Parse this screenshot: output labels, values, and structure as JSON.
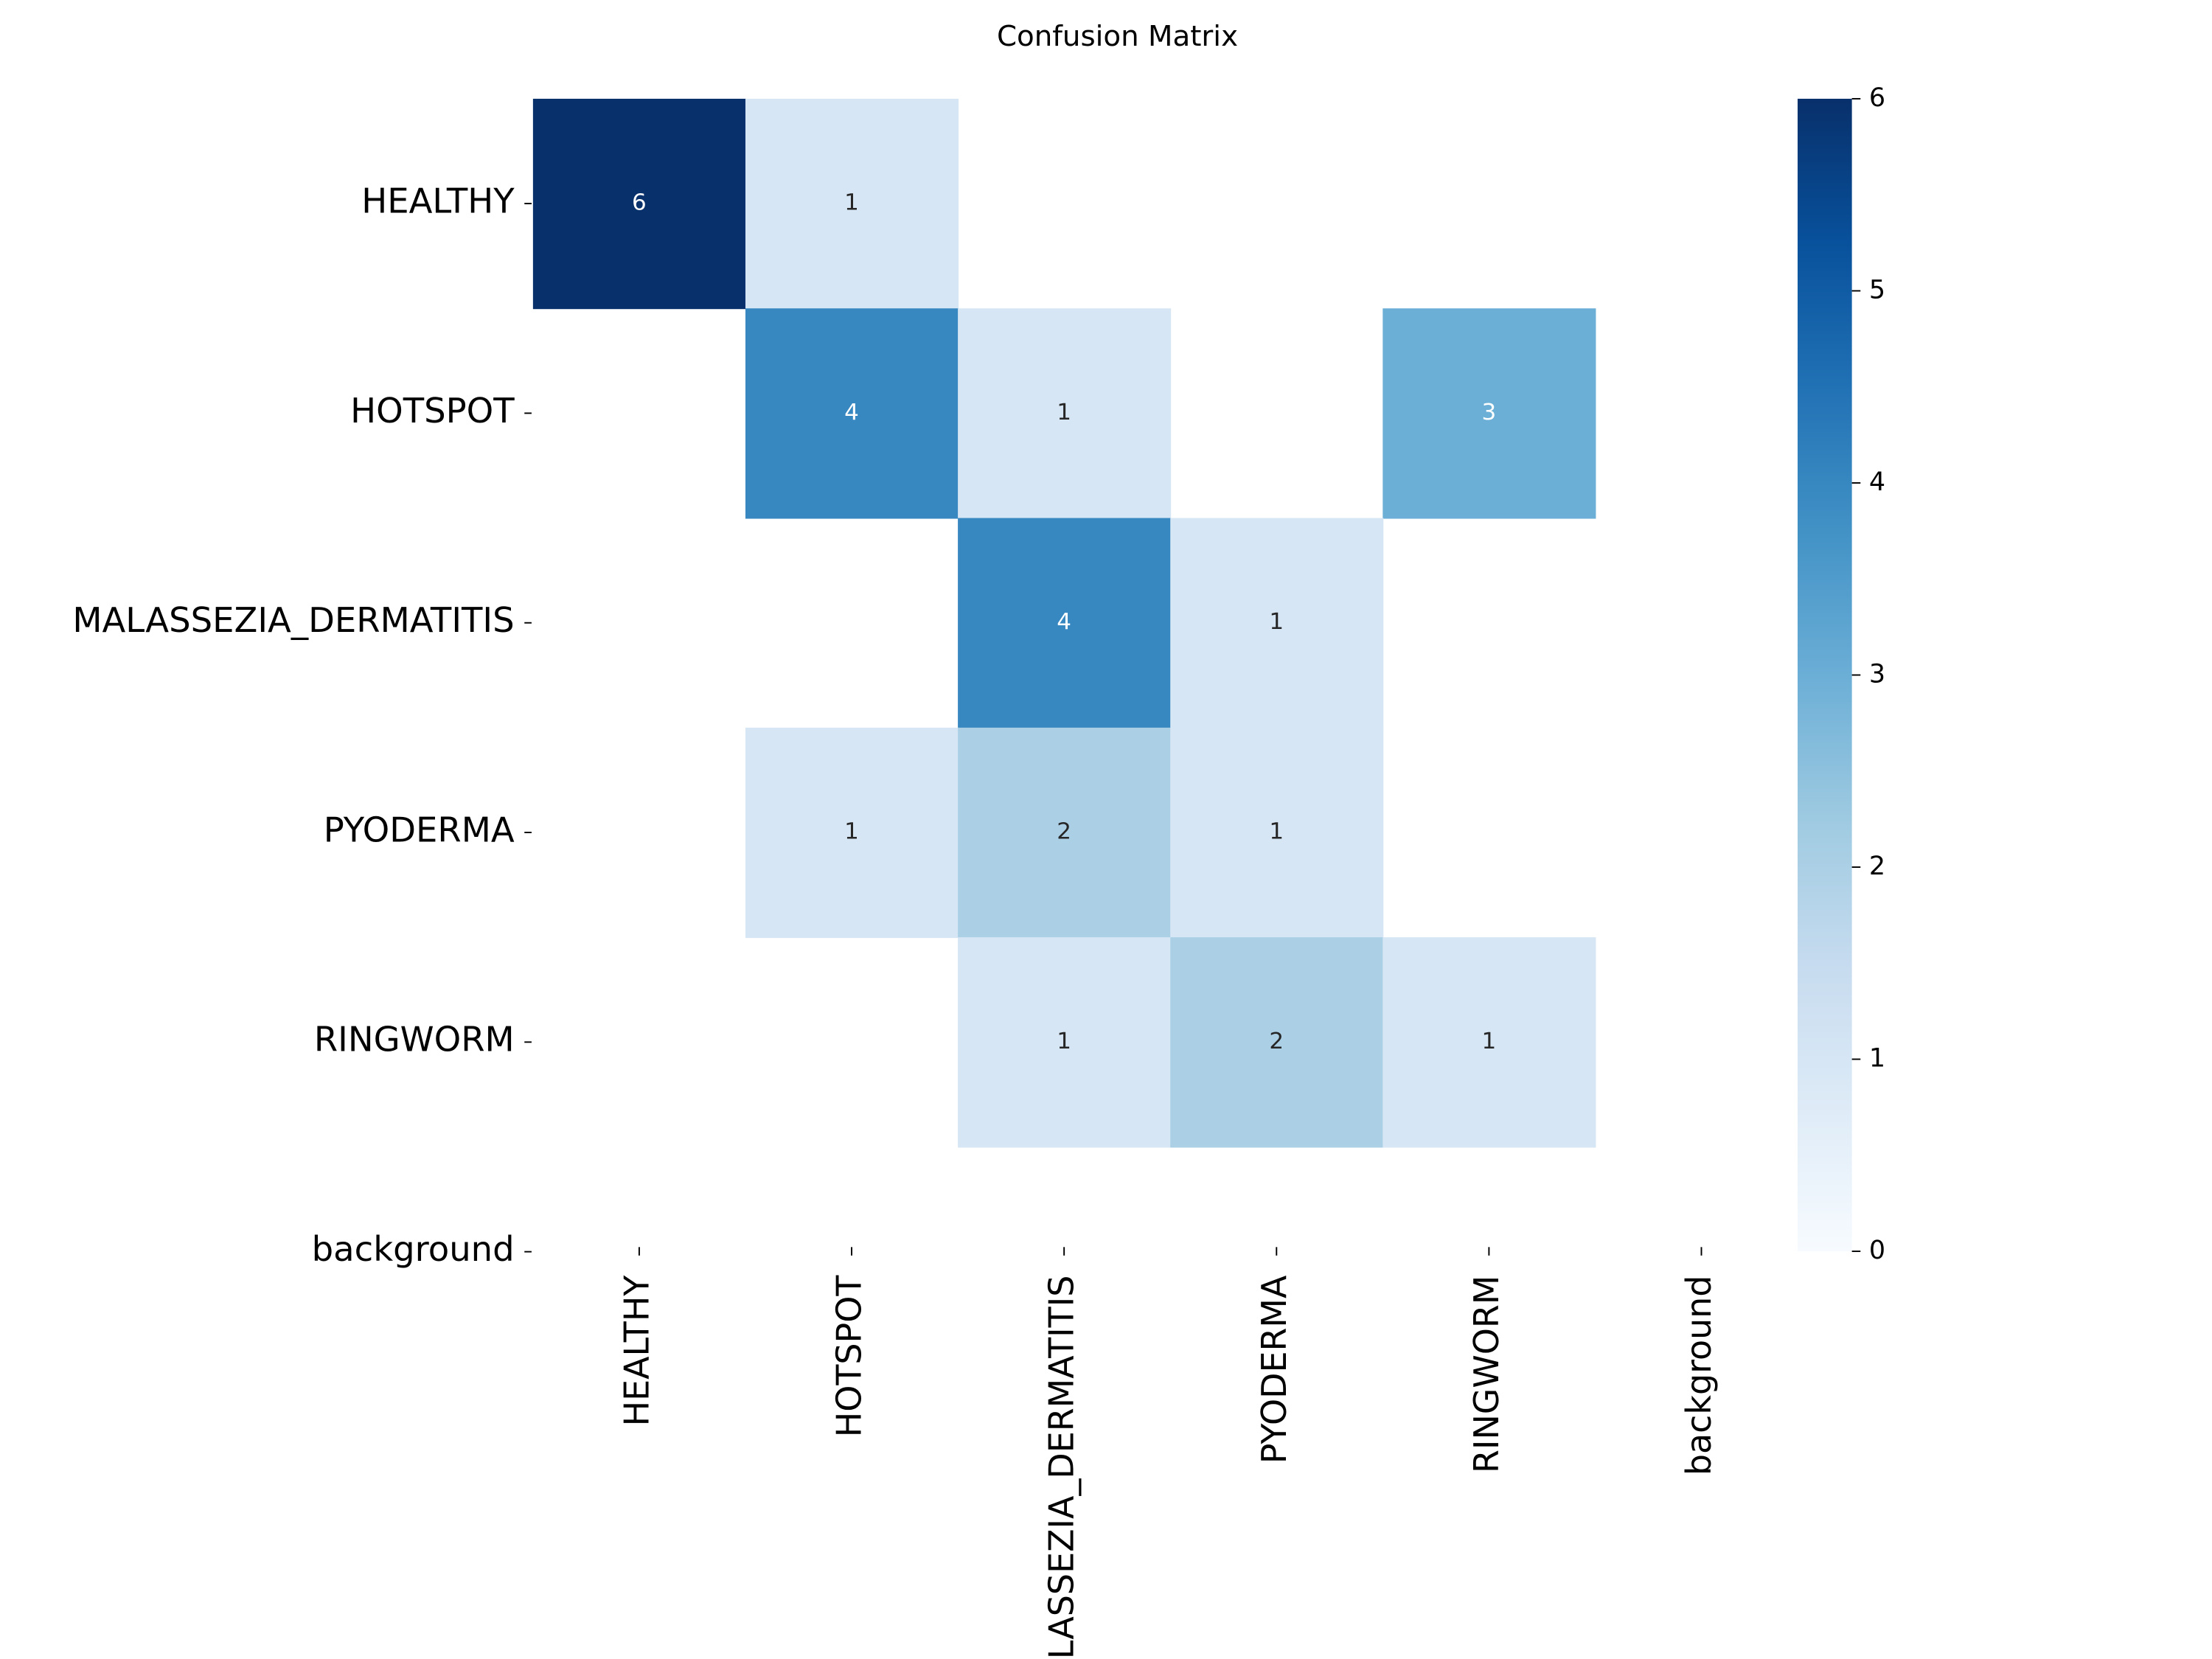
{
  "chart_data": {
    "type": "heatmap",
    "title": "Confusion Matrix",
    "rows": [
      "HEALTHY",
      "HOTSPOT",
      "MALASSEZIA_DERMATITIS",
      "PYODERMA",
      "RINGWORM",
      "background"
    ],
    "columns": [
      "HEALTHY",
      "HOTSPOT",
      "MALASSEZIA_DERMATITIS",
      "PYODERMA",
      "RINGWORM",
      "background"
    ],
    "values": [
      [
        6,
        1,
        null,
        null,
        null,
        null
      ],
      [
        null,
        4,
        1,
        null,
        3,
        null
      ],
      [
        null,
        null,
        4,
        1,
        null,
        null
      ],
      [
        null,
        1,
        2,
        1,
        null,
        null
      ],
      [
        null,
        null,
        1,
        2,
        1,
        null
      ],
      [
        null,
        null,
        null,
        null,
        null,
        null
      ]
    ],
    "colormap": [
      "#f7fbff",
      "#deebf7",
      "#c6dbef",
      "#9ecae1",
      "#6baed6",
      "#4292c6",
      "#2171b5",
      "#08519c",
      "#08306b"
    ],
    "clim": [
      0,
      6
    ],
    "cticks": [
      0,
      1,
      2,
      3,
      4,
      5,
      6
    ]
  }
}
